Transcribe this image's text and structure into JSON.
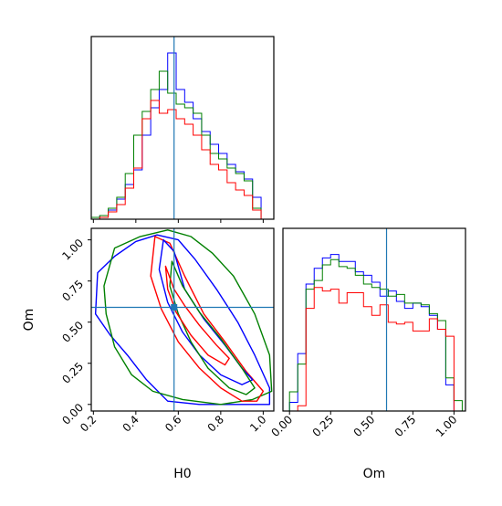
{
  "chart_data": {
    "type": "corner",
    "parameters": [
      "H0",
      "Om"
    ],
    "truth": {
      "H0": 0.58,
      "Om": 0.59,
      "color": "#1f77b4"
    },
    "series_colors": [
      "#0000ff",
      "#008000",
      "#ff0000"
    ],
    "axes": {
      "H0": {
        "range": [
          0.19,
          1.05
        ],
        "ticks": [
          0.2,
          0.4,
          0.6,
          0.8,
          1.0
        ],
        "tick_labels": [
          "0.2",
          "0.4",
          "0.6",
          "0.8",
          "1.0"
        ],
        "label": "H0"
      },
      "Om": {
        "range": [
          -0.04,
          1.07
        ],
        "ticks": [
          0.0,
          0.25,
          0.5,
          0.75,
          1.0
        ],
        "tick_labels": [
          "0.00",
          "0.25",
          "0.50",
          "0.75",
          "1.00"
        ],
        "label": "Om"
      }
    },
    "hist_H0": {
      "edges": [
        0.19,
        0.23,
        0.27,
        0.31,
        0.35,
        0.39,
        0.43,
        0.47,
        0.51,
        0.55,
        0.59,
        0.63,
        0.67,
        0.71,
        0.75,
        0.79,
        0.83,
        0.87,
        0.91,
        0.95,
        0.99,
        1.03
      ],
      "ylim": [
        0,
        1.0
      ],
      "series": [
        {
          "color": "#0000ff",
          "values": [
            0.0,
            0.02,
            0.05,
            0.11,
            0.19,
            0.27,
            0.46,
            0.61,
            0.71,
            0.91,
            0.71,
            0.64,
            0.55,
            0.48,
            0.41,
            0.36,
            0.3,
            0.26,
            0.22,
            0.12,
            0.0
          ]
        },
        {
          "color": "#008000",
          "values": [
            0.01,
            0.02,
            0.06,
            0.12,
            0.25,
            0.46,
            0.59,
            0.71,
            0.81,
            0.69,
            0.63,
            0.61,
            0.58,
            0.46,
            0.36,
            0.33,
            0.28,
            0.25,
            0.21,
            0.06,
            0.0
          ]
        },
        {
          "color": "#ff0000",
          "values": [
            0.0,
            0.01,
            0.04,
            0.08,
            0.17,
            0.28,
            0.55,
            0.65,
            0.58,
            0.6,
            0.55,
            0.52,
            0.46,
            0.38,
            0.3,
            0.27,
            0.2,
            0.16,
            0.13,
            0.05,
            0.0
          ]
        }
      ]
    },
    "hist_Om": {
      "edges": [
        0.0,
        0.05,
        0.1,
        0.15,
        0.2,
        0.25,
        0.3,
        0.35,
        0.4,
        0.45,
        0.5,
        0.55,
        0.6,
        0.65,
        0.7,
        0.75,
        0.8,
        0.85,
        0.9,
        0.95,
        1.0,
        1.05
      ],
      "ylim": [
        0,
        1.05
      ],
      "series": [
        {
          "color": "#0000ff",
          "values": [
            0.05,
            0.33,
            0.73,
            0.82,
            0.88,
            0.9,
            0.86,
            0.86,
            0.8,
            0.78,
            0.74,
            0.66,
            0.69,
            0.63,
            0.59,
            0.62,
            0.6,
            0.55,
            0.47,
            0.15,
            0.0
          ]
        },
        {
          "color": "#008000",
          "values": [
            0.11,
            0.27,
            0.7,
            0.75,
            0.84,
            0.87,
            0.83,
            0.82,
            0.78,
            0.73,
            0.71,
            0.7,
            0.66,
            0.67,
            0.62,
            0.62,
            0.61,
            0.56,
            0.52,
            0.19,
            0.06
          ]
        },
        {
          "color": "#ff0000",
          "values": [
            0.0,
            0.03,
            0.59,
            0.71,
            0.69,
            0.7,
            0.62,
            0.68,
            0.68,
            0.6,
            0.55,
            0.61,
            0.51,
            0.5,
            0.51,
            0.46,
            0.46,
            0.53,
            0.47,
            0.43,
            0.0
          ]
        }
      ]
    },
    "contours": [
      {
        "color": "#0000ff",
        "level": "outer",
        "points": [
          [
            0.22,
            0.8
          ],
          [
            0.3,
            0.9
          ],
          [
            0.4,
            0.99
          ],
          [
            0.5,
            1.03
          ],
          [
            0.6,
            1.0
          ],
          [
            0.68,
            0.88
          ],
          [
            0.78,
            0.7
          ],
          [
            0.88,
            0.5
          ],
          [
            0.96,
            0.3
          ],
          [
            1.03,
            0.1
          ],
          [
            1.03,
            0.0
          ],
          [
            0.88,
            0.0
          ],
          [
            0.7,
            0.0
          ],
          [
            0.55,
            0.02
          ],
          [
            0.45,
            0.15
          ],
          [
            0.36,
            0.3
          ],
          [
            0.28,
            0.42
          ],
          [
            0.21,
            0.55
          ]
        ]
      },
      {
        "color": "#008000",
        "level": "outer",
        "points": [
          [
            0.3,
            0.95
          ],
          [
            0.42,
            1.02
          ],
          [
            0.55,
            1.06
          ],
          [
            0.66,
            1.02
          ],
          [
            0.76,
            0.92
          ],
          [
            0.86,
            0.78
          ],
          [
            0.96,
            0.55
          ],
          [
            1.03,
            0.3
          ],
          [
            1.04,
            0.08
          ],
          [
            0.95,
            0.03
          ],
          [
            0.8,
            0.0
          ],
          [
            0.62,
            0.03
          ],
          [
            0.48,
            0.08
          ],
          [
            0.38,
            0.18
          ],
          [
            0.3,
            0.35
          ],
          [
            0.26,
            0.55
          ],
          [
            0.25,
            0.72
          ]
        ]
      },
      {
        "color": "#ff0000",
        "level": "outer",
        "points": [
          [
            0.49,
            1.02
          ],
          [
            0.56,
            0.98
          ],
          [
            0.63,
            0.78
          ],
          [
            0.72,
            0.55
          ],
          [
            0.82,
            0.38
          ],
          [
            0.92,
            0.2
          ],
          [
            1.0,
            0.08
          ],
          [
            0.97,
            0.02
          ],
          [
            0.9,
            0.02
          ],
          [
            0.8,
            0.1
          ],
          [
            0.7,
            0.22
          ],
          [
            0.6,
            0.38
          ],
          [
            0.52,
            0.58
          ],
          [
            0.47,
            0.78
          ]
        ]
      },
      {
        "color": "#0000ff",
        "level": "inner",
        "points": [
          [
            0.53,
            1.0
          ],
          [
            0.58,
            0.93
          ],
          [
            0.63,
            0.7
          ],
          [
            0.72,
            0.52
          ],
          [
            0.82,
            0.36
          ],
          [
            0.9,
            0.22
          ],
          [
            0.95,
            0.15
          ],
          [
            0.9,
            0.12
          ],
          [
            0.8,
            0.18
          ],
          [
            0.7,
            0.3
          ],
          [
            0.62,
            0.44
          ],
          [
            0.55,
            0.62
          ],
          [
            0.51,
            0.82
          ]
        ]
      },
      {
        "color": "#008000",
        "level": "inner",
        "points": [
          [
            0.57,
            0.87
          ],
          [
            0.62,
            0.72
          ],
          [
            0.7,
            0.56
          ],
          [
            0.8,
            0.4
          ],
          [
            0.9,
            0.22
          ],
          [
            0.96,
            0.1
          ],
          [
            0.92,
            0.06
          ],
          [
            0.84,
            0.1
          ],
          [
            0.74,
            0.22
          ],
          [
            0.66,
            0.38
          ],
          [
            0.6,
            0.55
          ],
          [
            0.56,
            0.72
          ]
        ]
      },
      {
        "color": "#ff0000",
        "level": "inner",
        "points": [
          [
            0.54,
            0.84
          ],
          [
            0.58,
            0.7
          ],
          [
            0.63,
            0.6
          ],
          [
            0.7,
            0.48
          ],
          [
            0.78,
            0.36
          ],
          [
            0.84,
            0.28
          ],
          [
            0.82,
            0.24
          ],
          [
            0.74,
            0.3
          ],
          [
            0.66,
            0.42
          ],
          [
            0.59,
            0.56
          ],
          [
            0.55,
            0.7
          ]
        ]
      }
    ],
    "scatter_points": {
      "color": "#1f77b4",
      "points": [
        [
          0.58,
          0.59
        ]
      ]
    }
  }
}
